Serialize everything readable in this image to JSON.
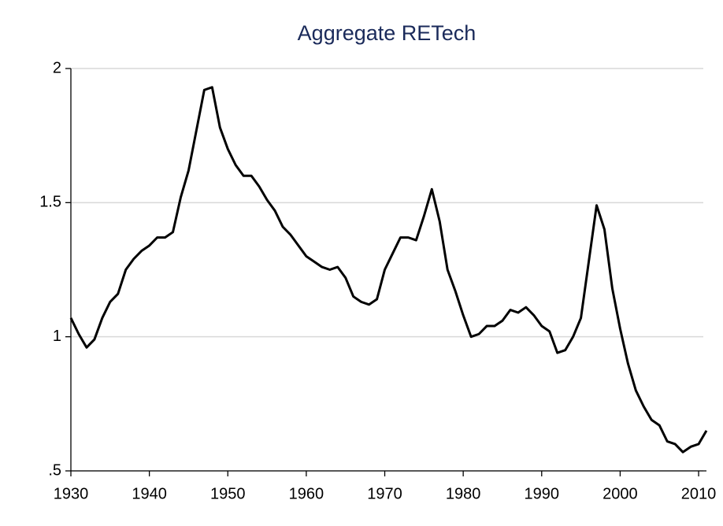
{
  "chart_data": {
    "type": "line",
    "title": "Aggregate RETech",
    "x": [
      1930,
      1931,
      1932,
      1933,
      1934,
      1935,
      1936,
      1937,
      1938,
      1939,
      1940,
      1941,
      1942,
      1943,
      1944,
      1945,
      1946,
      1947,
      1948,
      1949,
      1950,
      1951,
      1952,
      1953,
      1954,
      1955,
      1956,
      1957,
      1958,
      1959,
      1960,
      1961,
      1962,
      1963,
      1964,
      1965,
      1966,
      1967,
      1968,
      1969,
      1970,
      1971,
      1972,
      1973,
      1974,
      1975,
      1976,
      1977,
      1978,
      1979,
      1980,
      1981,
      1982,
      1983,
      1984,
      1985,
      1986,
      1987,
      1988,
      1989,
      1990,
      1991,
      1992,
      1993,
      1994,
      1995,
      1996,
      1997,
      1998,
      1999,
      2000,
      2001,
      2002,
      2003,
      2004,
      2005,
      2006,
      2007,
      2008,
      2009,
      2010,
      2011
    ],
    "series": [
      {
        "color": "#000000",
        "values": [
          1.07,
          1.01,
          0.96,
          0.99,
          1.07,
          1.13,
          1.16,
          1.25,
          1.29,
          1.32,
          1.34,
          1.37,
          1.37,
          1.39,
          1.52,
          1.62,
          1.77,
          1.92,
          1.93,
          1.78,
          1.7,
          1.64,
          1.6,
          1.6,
          1.56,
          1.51,
          1.47,
          1.41,
          1.38,
          1.34,
          1.3,
          1.28,
          1.26,
          1.25,
          1.26,
          1.22,
          1.15,
          1.13,
          1.12,
          1.14,
          1.25,
          1.31,
          1.37,
          1.37,
          1.36,
          1.45,
          1.55,
          1.43,
          1.25,
          1.17,
          1.08,
          1.0,
          1.01,
          1.04,
          1.04,
          1.06,
          1.1,
          1.09,
          1.11,
          1.08,
          1.04,
          1.02,
          0.94,
          0.95,
          1.0,
          1.07,
          1.28,
          1.49,
          1.4,
          1.18,
          1.03,
          0.9,
          0.8,
          0.74,
          0.69,
          0.67,
          0.61,
          0.6,
          0.57,
          0.59,
          0.6,
          0.65
        ]
      }
    ],
    "xlim": [
      1930,
      2011
    ],
    "xticks": [
      1930,
      1940,
      1950,
      1960,
      1970,
      1980,
      1990,
      2000,
      2010
    ],
    "ylim": [
      0.5,
      2
    ],
    "yticks": [
      {
        "value": 0.5,
        "label": ".5"
      },
      1,
      1.5,
      2
    ],
    "grid": true
  }
}
